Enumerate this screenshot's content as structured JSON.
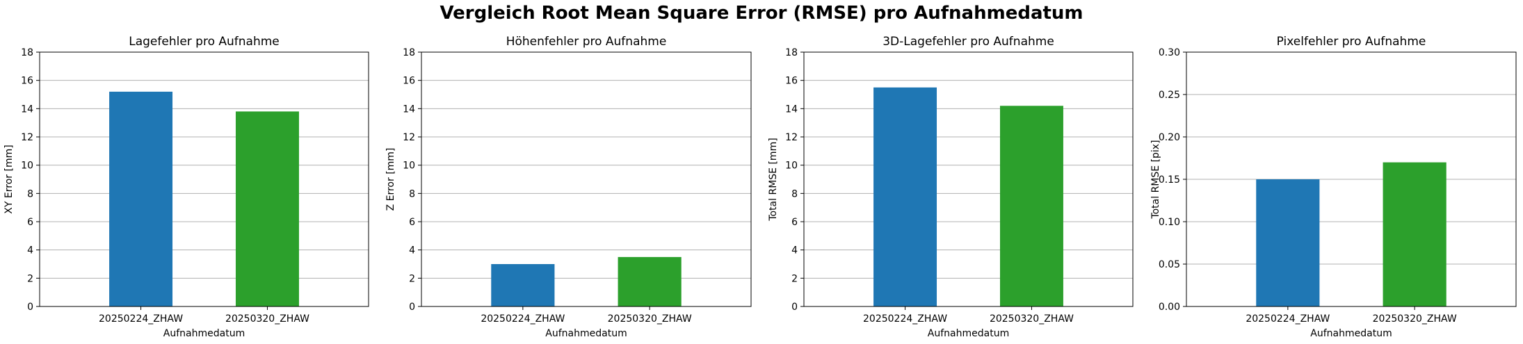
{
  "figure_title": "Vergleich Root Mean Square Error (RMSE) pro Aufnahmedatum",
  "colors": {
    "bar_1": "#1f77b4",
    "bar_2": "#2ca02c",
    "grid": "#b0b0b0",
    "axes": "#000000"
  },
  "chart_data": [
    {
      "type": "bar",
      "title": "Lagefehler pro Aufnahme",
      "xlabel": "Aufnahmedatum",
      "ylabel": "XY Error [mm]",
      "categories": [
        "20250224_ZHAW",
        "20250320_ZHAW"
      ],
      "values": [
        15.2,
        13.8
      ],
      "ylim": [
        0,
        18
      ],
      "yticks": [
        "0",
        "2",
        "4",
        "6",
        "8",
        "10",
        "12",
        "14",
        "16",
        "18"
      ],
      "grid": "y",
      "legend": "none"
    },
    {
      "type": "bar",
      "title": "Höhenfehler pro Aufnahme",
      "xlabel": "Aufnahmedatum",
      "ylabel": "Z Error [mm]",
      "categories": [
        "20250224_ZHAW",
        "20250320_ZHAW"
      ],
      "values": [
        3.0,
        3.5
      ],
      "ylim": [
        0,
        18
      ],
      "yticks": [
        "0",
        "2",
        "4",
        "6",
        "8",
        "10",
        "12",
        "14",
        "16",
        "18"
      ],
      "grid": "y",
      "legend": "none"
    },
    {
      "type": "bar",
      "title": "3D-Lagefehler pro Aufnahme",
      "xlabel": "Aufnahmedatum",
      "ylabel": "Total RMSE [mm]",
      "categories": [
        "20250224_ZHAW",
        "20250320_ZHAW"
      ],
      "values": [
        15.5,
        14.2
      ],
      "ylim": [
        0,
        18
      ],
      "yticks": [
        "0",
        "2",
        "4",
        "6",
        "8",
        "10",
        "12",
        "14",
        "16",
        "18"
      ],
      "grid": "y",
      "legend": "none"
    },
    {
      "type": "bar",
      "title": "Pixelfehler pro Aufnahme",
      "xlabel": "Aufnahmedatum",
      "ylabel": "Total RMSE [pix]",
      "categories": [
        "20250224_ZHAW",
        "20250320_ZHAW"
      ],
      "values": [
        0.15,
        0.17
      ],
      "ylim": [
        0,
        0.3
      ],
      "yticks": [
        "0.00",
        "0.05",
        "0.10",
        "0.15",
        "0.20",
        "0.25",
        "0.30"
      ],
      "grid": "y",
      "legend": "none"
    }
  ]
}
